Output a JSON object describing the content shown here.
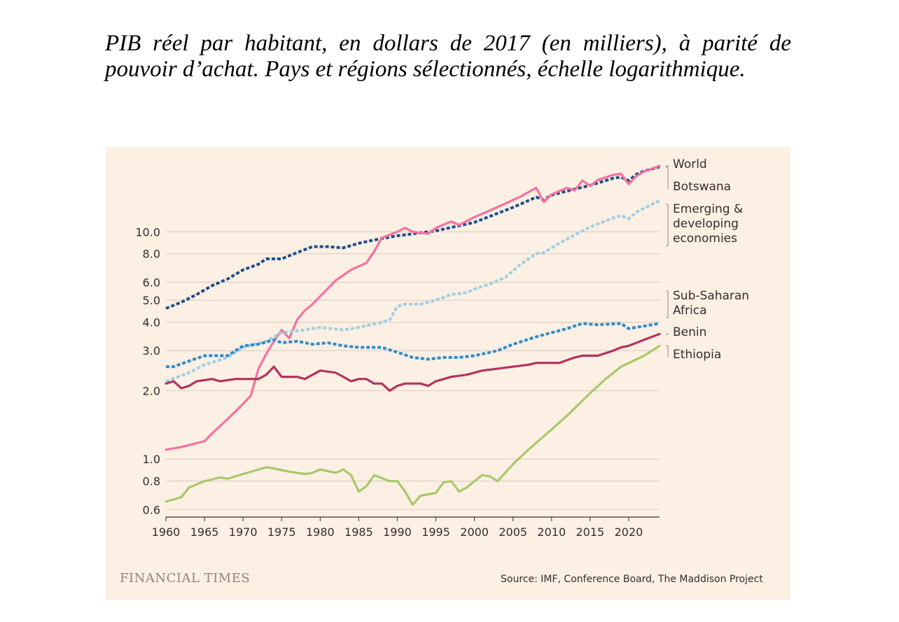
{
  "caption": "PIB réel par habitant, en dollars de 2017 (en milliers), à parité de pouvoir d’achat. Pays et régions sélectionnés, échelle logarithmique.",
  "brand": "FINANCIAL TIMES",
  "source": "Source: IMF, Conference Board, The Maddison Project",
  "chart_data": {
    "type": "line",
    "yscale": "log",
    "xlim": [
      1960,
      2024
    ],
    "ylim": [
      0.56,
      22
    ],
    "xticks": [
      1960,
      1965,
      1970,
      1975,
      1980,
      1985,
      1990,
      1995,
      2000,
      2005,
      2010,
      2015,
      2020
    ],
    "yticks": [
      0.6,
      0.8,
      1.0,
      2.0,
      3.0,
      4.0,
      5.0,
      6.0,
      8.0,
      10.0
    ],
    "ytick_labels": [
      "0.6",
      "0.8",
      "1.0",
      "2.0",
      "3.0",
      "4.0",
      "5.0",
      "6.0",
      "8.0",
      "10.0"
    ],
    "grid": "horizontal",
    "legend": "right (inline labels at line ends)",
    "series": [
      {
        "name": "World",
        "color": "#1f4e8c",
        "dashed": true,
        "points": [
          [
            1960,
            4.6
          ],
          [
            1962,
            4.9
          ],
          [
            1964,
            5.3
          ],
          [
            1966,
            5.8
          ],
          [
            1968,
            6.2
          ],
          [
            1970,
            6.8
          ],
          [
            1972,
            7.2
          ],
          [
            1973,
            7.6
          ],
          [
            1975,
            7.6
          ],
          [
            1977,
            8.1
          ],
          [
            1979,
            8.6
          ],
          [
            1981,
            8.6
          ],
          [
            1983,
            8.5
          ],
          [
            1985,
            8.9
          ],
          [
            1987,
            9.2
          ],
          [
            1990,
            9.6
          ],
          [
            1995,
            10.1
          ],
          [
            2000,
            11.0
          ],
          [
            2005,
            12.8
          ],
          [
            2008,
            14.2
          ],
          [
            2009,
            13.8
          ],
          [
            2010,
            14.5
          ],
          [
            2012,
            15.1
          ],
          [
            2015,
            16.0
          ],
          [
            2018,
            17.2
          ],
          [
            2019,
            17.4
          ],
          [
            2020,
            16.8
          ],
          [
            2021,
            17.9
          ],
          [
            2022,
            18.5
          ],
          [
            2024,
            19.3
          ]
        ]
      },
      {
        "name": "Botswana",
        "color": "#f472a0",
        "dashed": false,
        "points": [
          [
            1960,
            1.1
          ],
          [
            1962,
            1.13
          ],
          [
            1965,
            1.2
          ],
          [
            1966,
            1.3
          ],
          [
            1968,
            1.5
          ],
          [
            1970,
            1.75
          ],
          [
            1971,
            1.9
          ],
          [
            1972,
            2.5
          ],
          [
            1973,
            2.9
          ],
          [
            1974,
            3.3
          ],
          [
            1975,
            3.7
          ],
          [
            1976,
            3.4
          ],
          [
            1977,
            4.1
          ],
          [
            1978,
            4.5
          ],
          [
            1979,
            4.8
          ],
          [
            1980,
            5.2
          ],
          [
            1982,
            6.1
          ],
          [
            1984,
            6.8
          ],
          [
            1986,
            7.3
          ],
          [
            1987,
            8.2
          ],
          [
            1988,
            9.4
          ],
          [
            1990,
            10.0
          ],
          [
            1991,
            10.4
          ],
          [
            1992,
            10.0
          ],
          [
            1994,
            9.8
          ],
          [
            1995,
            10.4
          ],
          [
            1997,
            11.1
          ],
          [
            1998,
            10.7
          ],
          [
            2000,
            11.6
          ],
          [
            2002,
            12.4
          ],
          [
            2004,
            13.3
          ],
          [
            2006,
            14.3
          ],
          [
            2008,
            15.6
          ],
          [
            2009,
            13.5
          ],
          [
            2010,
            14.6
          ],
          [
            2012,
            15.6
          ],
          [
            2013,
            15.2
          ],
          [
            2014,
            16.8
          ],
          [
            2015,
            15.9
          ],
          [
            2016,
            16.9
          ],
          [
            2018,
            17.8
          ],
          [
            2019,
            18.0
          ],
          [
            2020,
            16.2
          ],
          [
            2021,
            17.6
          ],
          [
            2022,
            18.4
          ],
          [
            2024,
            19.5
          ]
        ]
      },
      {
        "name": "Emerging & developing economies",
        "color": "#9dcfe4",
        "dashed": true,
        "points": [
          [
            1960,
            2.2
          ],
          [
            1963,
            2.4
          ],
          [
            1965,
            2.6
          ],
          [
            1968,
            2.8
          ],
          [
            1970,
            3.1
          ],
          [
            1973,
            3.3
          ],
          [
            1975,
            3.6
          ],
          [
            1978,
            3.7
          ],
          [
            1980,
            3.8
          ],
          [
            1983,
            3.7
          ],
          [
            1985,
            3.8
          ],
          [
            1988,
            4.0
          ],
          [
            1989,
            4.1
          ],
          [
            1990,
            4.7
          ],
          [
            1991,
            4.8
          ],
          [
            1993,
            4.8
          ],
          [
            1995,
            5.0
          ],
          [
            1997,
            5.3
          ],
          [
            1999,
            5.4
          ],
          [
            2000,
            5.6
          ],
          [
            2002,
            5.9
          ],
          [
            2004,
            6.3
          ],
          [
            2006,
            7.2
          ],
          [
            2008,
            8.0
          ],
          [
            2009,
            8.1
          ],
          [
            2010,
            8.5
          ],
          [
            2012,
            9.3
          ],
          [
            2015,
            10.5
          ],
          [
            2018,
            11.5
          ],
          [
            2019,
            11.8
          ],
          [
            2020,
            11.4
          ],
          [
            2021,
            12.2
          ],
          [
            2022,
            12.7
          ],
          [
            2024,
            13.7
          ]
        ]
      },
      {
        "name": "Sub-Saharan Africa",
        "color": "#2e8bcc",
        "dashed": true,
        "points": [
          [
            1960,
            2.55
          ],
          [
            1961,
            2.55
          ],
          [
            1963,
            2.7
          ],
          [
            1965,
            2.85
          ],
          [
            1967,
            2.85
          ],
          [
            1968,
            2.85
          ],
          [
            1970,
            3.15
          ],
          [
            1972,
            3.2
          ],
          [
            1974,
            3.35
          ],
          [
            1975,
            3.25
          ],
          [
            1977,
            3.3
          ],
          [
            1979,
            3.2
          ],
          [
            1981,
            3.25
          ],
          [
            1983,
            3.15
          ],
          [
            1985,
            3.1
          ],
          [
            1988,
            3.1
          ],
          [
            1990,
            2.95
          ],
          [
            1992,
            2.8
          ],
          [
            1994,
            2.75
          ],
          [
            1996,
            2.8
          ],
          [
            1998,
            2.8
          ],
          [
            2000,
            2.85
          ],
          [
            2003,
            3.0
          ],
          [
            2005,
            3.2
          ],
          [
            2008,
            3.45
          ],
          [
            2010,
            3.6
          ],
          [
            2012,
            3.75
          ],
          [
            2014,
            3.95
          ],
          [
            2016,
            3.9
          ],
          [
            2019,
            3.95
          ],
          [
            2020,
            3.75
          ],
          [
            2022,
            3.85
          ],
          [
            2024,
            3.95
          ]
        ]
      },
      {
        "name": "Benin",
        "color": "#b3325f",
        "dashed": false,
        "points": [
          [
            1960,
            2.15
          ],
          [
            1961,
            2.2
          ],
          [
            1962,
            2.05
          ],
          [
            1963,
            2.1
          ],
          [
            1964,
            2.2
          ],
          [
            1966,
            2.25
          ],
          [
            1967,
            2.2
          ],
          [
            1969,
            2.25
          ],
          [
            1972,
            2.25
          ],
          [
            1973,
            2.35
          ],
          [
            1974,
            2.55
          ],
          [
            1975,
            2.3
          ],
          [
            1977,
            2.3
          ],
          [
            1978,
            2.25
          ],
          [
            1980,
            2.45
          ],
          [
            1982,
            2.4
          ],
          [
            1983,
            2.3
          ],
          [
            1984,
            2.2
          ],
          [
            1985,
            2.25
          ],
          [
            1986,
            2.25
          ],
          [
            1987,
            2.15
          ],
          [
            1988,
            2.15
          ],
          [
            1989,
            2.0
          ],
          [
            1990,
            2.1
          ],
          [
            1991,
            2.15
          ],
          [
            1993,
            2.15
          ],
          [
            1994,
            2.1
          ],
          [
            1995,
            2.2
          ],
          [
            1997,
            2.3
          ],
          [
            1999,
            2.35
          ],
          [
            2001,
            2.45
          ],
          [
            2003,
            2.5
          ],
          [
            2005,
            2.55
          ],
          [
            2007,
            2.6
          ],
          [
            2008,
            2.65
          ],
          [
            2010,
            2.65
          ],
          [
            2011,
            2.65
          ],
          [
            2013,
            2.8
          ],
          [
            2014,
            2.85
          ],
          [
            2016,
            2.85
          ],
          [
            2018,
            3.0
          ],
          [
            2019,
            3.1
          ],
          [
            2020,
            3.15
          ],
          [
            2022,
            3.35
          ],
          [
            2024,
            3.55
          ]
        ]
      },
      {
        "name": "Ethiopia",
        "color": "#a7c96a",
        "dashed": false,
        "points": [
          [
            1960,
            0.65
          ],
          [
            1962,
            0.68
          ],
          [
            1963,
            0.75
          ],
          [
            1965,
            0.8
          ],
          [
            1967,
            0.83
          ],
          [
            1968,
            0.82
          ],
          [
            1970,
            0.86
          ],
          [
            1973,
            0.92
          ],
          [
            1974,
            0.91
          ],
          [
            1976,
            0.88
          ],
          [
            1978,
            0.86
          ],
          [
            1979,
            0.87
          ],
          [
            1980,
            0.9
          ],
          [
            1982,
            0.87
          ],
          [
            1983,
            0.9
          ],
          [
            1984,
            0.85
          ],
          [
            1985,
            0.72
          ],
          [
            1986,
            0.76
          ],
          [
            1987,
            0.85
          ],
          [
            1989,
            0.8
          ],
          [
            1990,
            0.8
          ],
          [
            1991,
            0.72
          ],
          [
            1992,
            0.63
          ],
          [
            1993,
            0.69
          ],
          [
            1994,
            0.7
          ],
          [
            1995,
            0.71
          ],
          [
            1996,
            0.79
          ],
          [
            1997,
            0.8
          ],
          [
            1998,
            0.72
          ],
          [
            1999,
            0.75
          ],
          [
            2000,
            0.8
          ],
          [
            2001,
            0.85
          ],
          [
            2002,
            0.84
          ],
          [
            2003,
            0.8
          ],
          [
            2005,
            0.95
          ],
          [
            2007,
            1.1
          ],
          [
            2010,
            1.35
          ],
          [
            2012,
            1.55
          ],
          [
            2015,
            1.95
          ],
          [
            2017,
            2.25
          ],
          [
            2019,
            2.55
          ],
          [
            2022,
            2.85
          ],
          [
            2024,
            3.15
          ]
        ]
      }
    ],
    "labels": [
      {
        "series": "World",
        "lines": [
          "World"
        ]
      },
      {
        "series": "Botswana",
        "lines": [
          "Botswana"
        ]
      },
      {
        "series": "Emerging & developing economies",
        "lines": [
          "Emerging &",
          "developing",
          "economies"
        ]
      },
      {
        "series": "Sub-Saharan Africa",
        "lines": [
          "Sub-Saharan",
          "Africa"
        ]
      },
      {
        "series": "Benin",
        "lines": [
          "Benin"
        ]
      },
      {
        "series": "Ethiopia",
        "lines": [
          "Ethiopia"
        ]
      }
    ]
  }
}
